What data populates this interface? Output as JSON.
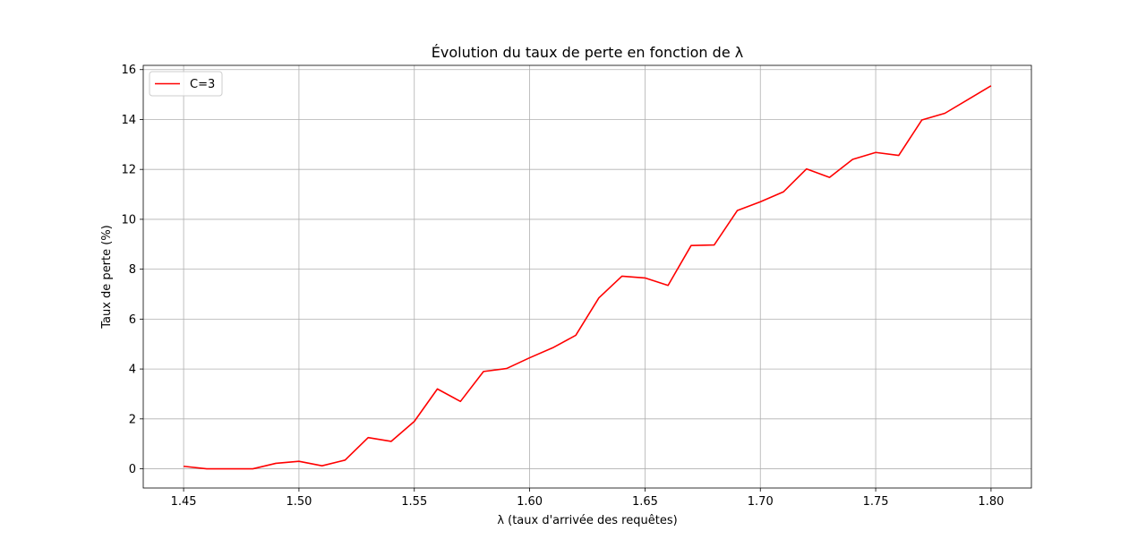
{
  "chart_data": {
    "type": "line",
    "title": "Évolution du taux de perte en fonction de λ",
    "xlabel": "λ (taux d'arrivée des requêtes)",
    "ylabel": "Taux de perte (%)",
    "xlim": [
      1.4325,
      1.8175
    ],
    "ylim": [
      -0.77,
      16.17
    ],
    "xticks": [
      1.45,
      1.5,
      1.55,
      1.6,
      1.65,
      1.7,
      1.75,
      1.8
    ],
    "xtick_labels": [
      "1.45",
      "1.50",
      "1.55",
      "1.60",
      "1.65",
      "1.70",
      "1.75",
      "1.80"
    ],
    "yticks": [
      0,
      2,
      4,
      6,
      8,
      10,
      12,
      14,
      16
    ],
    "ytick_labels": [
      "0",
      "2",
      "4",
      "6",
      "8",
      "10",
      "12",
      "14",
      "16"
    ],
    "grid": true,
    "legend": "upper-left",
    "series": [
      {
        "name": "C=3",
        "color": "#ff0000",
        "x": [
          1.45,
          1.46,
          1.47,
          1.48,
          1.49,
          1.5,
          1.51,
          1.52,
          1.53,
          1.54,
          1.55,
          1.56,
          1.57,
          1.58,
          1.59,
          1.6,
          1.61,
          1.62,
          1.63,
          1.64,
          1.65,
          1.66,
          1.67,
          1.68,
          1.69,
          1.7,
          1.71,
          1.72,
          1.73,
          1.74,
          1.75,
          1.76,
          1.77,
          1.78,
          1.79,
          1.8
        ],
        "y": [
          0.1,
          0.0,
          0.0,
          0.0,
          0.22,
          0.3,
          0.12,
          0.35,
          1.25,
          1.1,
          1.9,
          3.2,
          2.7,
          3.9,
          4.02,
          4.45,
          4.85,
          5.35,
          6.85,
          7.72,
          7.65,
          7.35,
          8.95,
          8.97,
          10.35,
          10.7,
          11.1,
          12.02,
          11.68,
          12.4,
          12.68,
          12.56,
          13.98,
          14.25,
          14.8,
          15.35
        ]
      }
    ]
  }
}
